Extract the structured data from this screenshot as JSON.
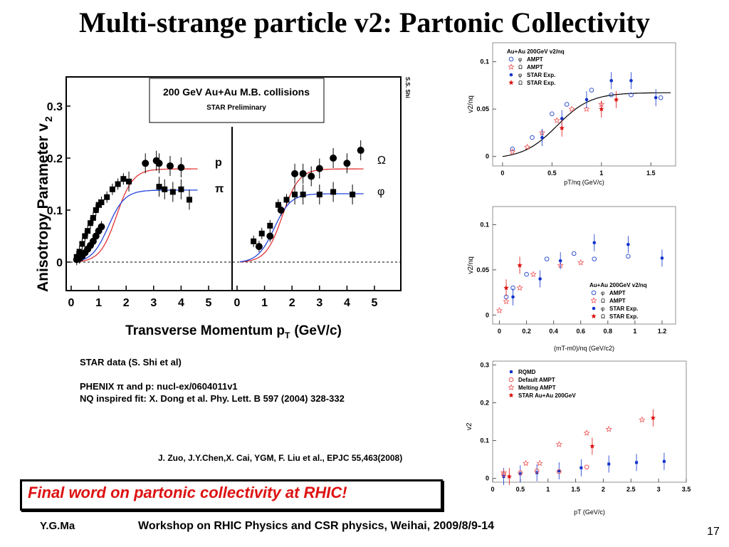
{
  "title": "Multi-strange particle v2: Partonic Collectivity",
  "main_figure": {
    "header_box_line1": "200 GeV Au+Au M.B. collisions",
    "header_box_line2": "STAR Preliminary",
    "ylabel": "Anisotropy Parameter v",
    "ylabel_sub": "2",
    "xlabel": "Transverse Momentum p",
    "xlabel_sub": "T",
    "xlabel_unit": "(GeV/c)",
    "side_label": "S.S. Shi",
    "yticks": [
      "0.3",
      "0.2",
      "0.1",
      "0"
    ],
    "xticks_left": [
      "0",
      "1",
      "2",
      "3",
      "4",
      "5"
    ],
    "xticks_right": [
      "0",
      "1",
      "2",
      "3",
      "4",
      "5"
    ],
    "label_p": "p",
    "label_pi": "π",
    "label_omega": "Ω",
    "label_phi": "φ",
    "accent_red": "#e33333",
    "accent_blue": "#2244dd"
  },
  "notes": {
    "line1": "STAR data (S. Shi et al)",
    "line2": "PHENIX π and p: nucl-ex/0604011v1",
    "line3": "NQ inspired fit: X. Dong et al. Phy. Lett. B 597 (2004) 328-332"
  },
  "reference": "J. Zuo, J.Y.Chen,X. Cai, YGM, F. Liu et al., EPJC 55,463(2008)",
  "final_word": "Final word on partonic collectivity at RHIC!",
  "footer": {
    "author": "Y.G.Ma",
    "workshop": "Workshop on RHIC Physics and CSR physics, Weihai, 2009/8/9-14",
    "page": "17"
  },
  "chart_data": [
    {
      "type": "scatter",
      "title": "200 GeV Au+Au M.B. collisions — STAR Preliminary (left: p, π)",
      "xlabel": "Transverse Momentum pT (GeV/c)",
      "ylabel": "Anisotropy Parameter v2",
      "xlim": [
        0,
        5
      ],
      "ylim": [
        -0.02,
        0.34
      ],
      "series": [
        {
          "name": "p",
          "marker": "circle",
          "x": [
            0.2,
            0.3,
            0.4,
            0.5,
            0.6,
            0.7,
            0.8,
            0.9,
            1.0,
            1.1,
            2.7,
            3.1,
            3.2,
            3.6,
            4.0
          ],
          "y": [
            0.005,
            0.008,
            0.012,
            0.018,
            0.025,
            0.032,
            0.04,
            0.05,
            0.06,
            0.068,
            0.19,
            0.195,
            0.19,
            0.185,
            0.182
          ]
        },
        {
          "name": "π",
          "marker": "square",
          "x": [
            0.2,
            0.3,
            0.4,
            0.5,
            0.6,
            0.7,
            0.8,
            0.9,
            1.0,
            1.1,
            1.3,
            1.5,
            1.7,
            1.9,
            2.1,
            3.2,
            3.4,
            3.7,
            4.0,
            4.3
          ],
          "y": [
            0.01,
            0.02,
            0.035,
            0.05,
            0.06,
            0.075,
            0.085,
            0.1,
            0.11,
            0.115,
            0.125,
            0.14,
            0.15,
            0.16,
            0.155,
            0.145,
            0.14,
            0.135,
            0.14,
            0.12
          ]
        }
      ],
      "fits": [
        {
          "name": "p",
          "color": "#e33333",
          "plateau": 0.18
        },
        {
          "name": "π",
          "color": "#2244dd",
          "plateau": 0.14
        }
      ]
    },
    {
      "type": "scatter",
      "title": "200 GeV Au+Au M.B. collisions — STAR Preliminary (right: Ω, φ)",
      "xlabel": "Transverse Momentum pT (GeV/c)",
      "ylabel": "Anisotropy Parameter v2",
      "xlim": [
        0,
        5
      ],
      "ylim": [
        -0.02,
        0.34
      ],
      "series": [
        {
          "name": "Ω",
          "marker": "circle",
          "x": [
            0.8,
            1.2,
            1.6,
            2.1,
            2.4,
            2.7,
            3.0,
            3.5,
            4.0,
            4.5
          ],
          "y": [
            0.03,
            0.05,
            0.1,
            0.17,
            0.17,
            0.165,
            0.18,
            0.2,
            0.19,
            0.215
          ]
        },
        {
          "name": "φ",
          "marker": "square",
          "x": [
            0.6,
            0.9,
            1.2,
            1.5,
            1.8,
            2.1,
            2.4,
            3.0,
            3.5,
            4.2
          ],
          "y": [
            0.04,
            0.055,
            0.07,
            0.11,
            0.12,
            0.13,
            0.13,
            0.13,
            0.135,
            0.13
          ]
        }
      ],
      "fits": [
        {
          "name": "Ω",
          "color": "#e33333",
          "plateau": 0.18
        },
        {
          "name": "φ",
          "color": "#2244dd",
          "plateau": 0.133
        }
      ]
    },
    {
      "type": "scatter",
      "legend_title": "Au+Au 200GeV v2/nq",
      "xlabel": "pT/nq (GeV/c)",
      "ylabel": "v2/nq",
      "xlim": [
        -0.1,
        1.75
      ],
      "ylim": [
        -0.01,
        0.12
      ],
      "xticks": [
        "0",
        "0.5",
        "1",
        "1.5"
      ],
      "yticks": [
        "0",
        "0.05",
        "0.1"
      ],
      "series": [
        {
          "name": "φ AMPT",
          "marker": "open-circle",
          "color": "#3355cc",
          "x": [
            0.1,
            0.3,
            0.5,
            0.65,
            0.9,
            1.1,
            1.3,
            1.6
          ],
          "y": [
            0.008,
            0.02,
            0.045,
            0.055,
            0.07,
            0.065,
            0.065,
            0.062
          ]
        },
        {
          "name": "Ω AMPT",
          "marker": "open-star",
          "color": "#ee5555",
          "x": [
            0.1,
            0.25,
            0.4,
            0.55,
            0.7,
            0.85,
            1.0
          ],
          "y": [
            0.005,
            0.01,
            0.025,
            0.038,
            0.05,
            0.05,
            0.055
          ]
        },
        {
          "name": "φ STAR Exp.",
          "marker": "filled-circle",
          "color": "#1133cc",
          "x": [
            0.4,
            0.6,
            0.85,
            1.1,
            1.3,
            1.55
          ],
          "y": [
            0.02,
            0.04,
            0.06,
            0.08,
            0.08,
            0.062
          ]
        },
        {
          "name": "Ω STAR Exp.",
          "marker": "filled-star",
          "color": "#dd1111",
          "x": [
            0.6,
            1.0,
            1.15
          ],
          "y": [
            0.03,
            0.05,
            0.06
          ]
        }
      ],
      "fit": {
        "color": "#000000"
      }
    },
    {
      "type": "scatter",
      "legend_title": "Au+Au 200GeV v2/nq",
      "xlabel": "(mT-m0)/nq (GeV/c2)",
      "ylabel": "v2/nq",
      "xlim": [
        -0.05,
        1.3
      ],
      "ylim": [
        -0.01,
        0.12
      ],
      "xticks": [
        "0",
        "0.2",
        "0.4",
        "0.6",
        "0.8",
        "1",
        "1.2"
      ],
      "yticks": [
        "0",
        "0.05",
        "0.1"
      ],
      "series": [
        {
          "name": "φ AMPT",
          "marker": "open-circle",
          "color": "#3355cc",
          "x": [
            0.05,
            0.1,
            0.2,
            0.35,
            0.55,
            0.7,
            0.95
          ],
          "y": [
            0.02,
            0.03,
            0.045,
            0.062,
            0.068,
            0.062,
            0.065
          ]
        },
        {
          "name": "Ω AMPT",
          "marker": "open-star",
          "color": "#ee5555",
          "x": [
            0.0,
            0.05,
            0.15,
            0.25,
            0.45,
            0.6
          ],
          "y": [
            0.005,
            0.015,
            0.03,
            0.045,
            0.055,
            0.058
          ]
        },
        {
          "name": "φ STAR Exp.",
          "marker": "filled-circle",
          "color": "#1133cc",
          "x": [
            0.1,
            0.3,
            0.45,
            0.7,
            0.95,
            1.2
          ],
          "y": [
            0.02,
            0.04,
            0.06,
            0.08,
            0.078,
            0.063
          ]
        },
        {
          "name": "Ω STAR Exp.",
          "marker": "filled-star",
          "color": "#dd1111",
          "x": [
            0.05,
            0.15
          ],
          "y": [
            0.03,
            0.055
          ]
        }
      ]
    },
    {
      "type": "scatter",
      "xlabel": "pT (GeV/c)",
      "ylabel": "v2",
      "xlim": [
        0,
        3.5
      ],
      "ylim": [
        -0.01,
        0.31
      ],
      "xticks": [
        "0",
        "0.5",
        "1",
        "1.5",
        "2",
        "2.5",
        "3",
        "3.5"
      ],
      "yticks": [
        "0",
        "0.1",
        "0.2",
        "0.3"
      ],
      "series": [
        {
          "name": "RQMD",
          "marker": "filled-square",
          "color": "#1133cc",
          "x": [
            0.2,
            0.5,
            0.8,
            1.2,
            1.6,
            2.1,
            2.6,
            3.1
          ],
          "y": [
            0.005,
            0.012,
            0.015,
            0.02,
            0.028,
            0.038,
            0.042,
            0.045
          ]
        },
        {
          "name": "Default AMPT",
          "marker": "open-circle",
          "color": "#ee5555",
          "x": [
            0.2,
            0.5,
            0.8,
            1.2,
            1.7
          ],
          "y": [
            0.01,
            0.015,
            0.02,
            0.018,
            0.03
          ]
        },
        {
          "name": "Melting AMPT",
          "marker": "open-star",
          "color": "#ee5555",
          "x": [
            0.2,
            0.6,
            0.85,
            1.2,
            1.7,
            2.1,
            2.7
          ],
          "y": [
            0.015,
            0.04,
            0.04,
            0.09,
            0.12,
            0.13,
            0.155
          ]
        },
        {
          "name": "STAR Au+Au 200GeV",
          "marker": "filled-star",
          "color": "#dd1111",
          "x": [
            0.3,
            1.8,
            2.9
          ],
          "y": [
            0.005,
            0.085,
            0.16
          ]
        }
      ]
    }
  ]
}
